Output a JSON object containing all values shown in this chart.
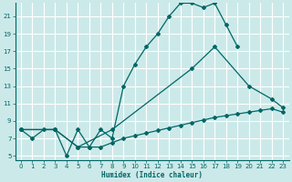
{
  "xlabel": "Humidex (Indice chaleur)",
  "bg_color": "#cce9e9",
  "grid_color": "#ffffff",
  "line_color": "#006666",
  "xlim": [
    -0.5,
    23.5
  ],
  "ylim": [
    4.5,
    22.5
  ],
  "xticks": [
    0,
    1,
    2,
    3,
    4,
    5,
    6,
    7,
    8,
    9,
    10,
    11,
    12,
    13,
    14,
    15,
    16,
    17,
    18,
    19,
    20,
    21,
    22,
    23
  ],
  "yticks": [
    5,
    7,
    9,
    11,
    13,
    15,
    17,
    19,
    21
  ],
  "line1_x": [
    0,
    1,
    2,
    3,
    4,
    5,
    6,
    7,
    8,
    9,
    10,
    11,
    12,
    13,
    14,
    15,
    16,
    17,
    18,
    19
  ],
  "line1_y": [
    8,
    7,
    8,
    8,
    5,
    8,
    6,
    8,
    7,
    13,
    15.5,
    17.5,
    19,
    21,
    22.5,
    22.5,
    22,
    22.5,
    20,
    17.5
  ],
  "line2_x": [
    0,
    3,
    5,
    8,
    15,
    17,
    20,
    22,
    23
  ],
  "line2_y": [
    8,
    8,
    6,
    8,
    15,
    17.5,
    13,
    11.5,
    10.5
  ],
  "line3_x": [
    0,
    3,
    5,
    6,
    7,
    8,
    9,
    10,
    11,
    12,
    13,
    14,
    15,
    16,
    17,
    18,
    19,
    20,
    21,
    22,
    23
  ],
  "line3_y": [
    8,
    8,
    6,
    6,
    6,
    6.5,
    7,
    7.3,
    7.6,
    7.9,
    8.2,
    8.5,
    8.8,
    9.1,
    9.4,
    9.6,
    9.8,
    10.0,
    10.2,
    10.4,
    10.0
  ]
}
